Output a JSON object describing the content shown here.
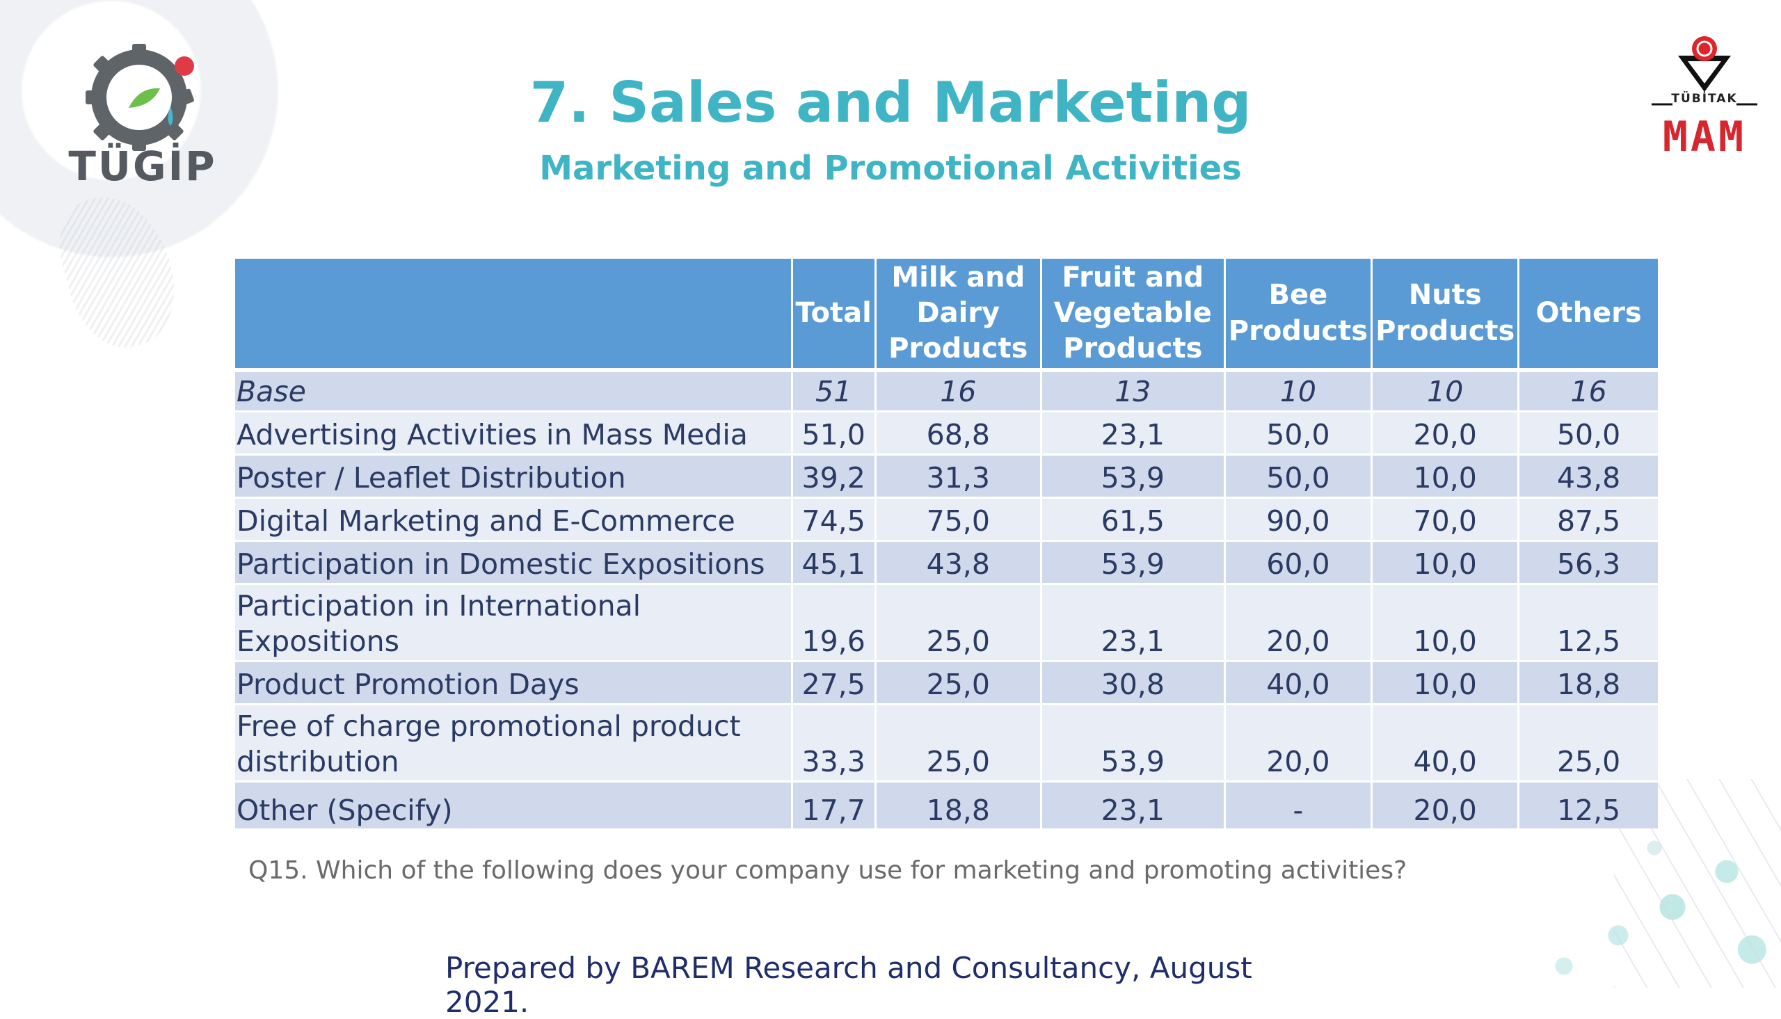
{
  "logos": {
    "left_text": "TÜGİP",
    "right_label": "TÜBİTAK",
    "right_text": "MAM"
  },
  "title": "7. Sales and Marketing",
  "subtitle": "Marketing and Promotional Activities",
  "table": {
    "columns": [
      "",
      "Total",
      "Milk and Dairy Products",
      "Fruit and Vegetable Products",
      "Bee Products",
      "Nuts Products",
      "Others"
    ],
    "rows": [
      {
        "label": "Base",
        "values": [
          "51",
          "16",
          "13",
          "10",
          "10",
          "16"
        ]
      },
      {
        "label": "Advertising Activities in Mass Media",
        "values": [
          "51,0",
          "68,8",
          "23,1",
          "50,0",
          "20,0",
          "50,0"
        ]
      },
      {
        "label": "Poster / Leaflet Distribution",
        "values": [
          "39,2",
          "31,3",
          "53,9",
          "50,0",
          "10,0",
          "43,8"
        ]
      },
      {
        "label": "Digital Marketing and E-Commerce",
        "values": [
          "74,5",
          "75,0",
          "61,5",
          "90,0",
          "70,0",
          "87,5"
        ]
      },
      {
        "label": "Participation in Domestic Expositions",
        "values": [
          "45,1",
          "43,8",
          "53,9",
          "60,0",
          "10,0",
          "56,3"
        ]
      },
      {
        "label": "Participation in International Expositions",
        "values": [
          "19,6",
          "25,0",
          "23,1",
          "20,0",
          "10,0",
          "12,5"
        ]
      },
      {
        "label": "Product Promotion Days",
        "values": [
          "27,5",
          "25,0",
          "30,8",
          "40,0",
          "10,0",
          "18,8"
        ]
      },
      {
        "label": "Free of charge promotional product distribution",
        "values": [
          "33,3",
          "25,0",
          "53,9",
          "20,0",
          "40,0",
          "25,0"
        ]
      },
      {
        "label": "Other (Specify)",
        "values": [
          "17,7",
          "18,8",
          "23,1",
          "-",
          "20,0",
          "12,5"
        ]
      }
    ]
  },
  "footnote": "Q15. Which of the following does your company use for marketing and promoting activities?",
  "credit": "Prepared by BAREM Research and Consultancy, August 2021.",
  "colors": {
    "title": "#3fb4c4",
    "header_bg": "#5b9bd5",
    "row_odd": "#cfd9eb",
    "row_even": "#e8edf6",
    "text": "#2a3a62",
    "brand_red": "#d7262e"
  }
}
